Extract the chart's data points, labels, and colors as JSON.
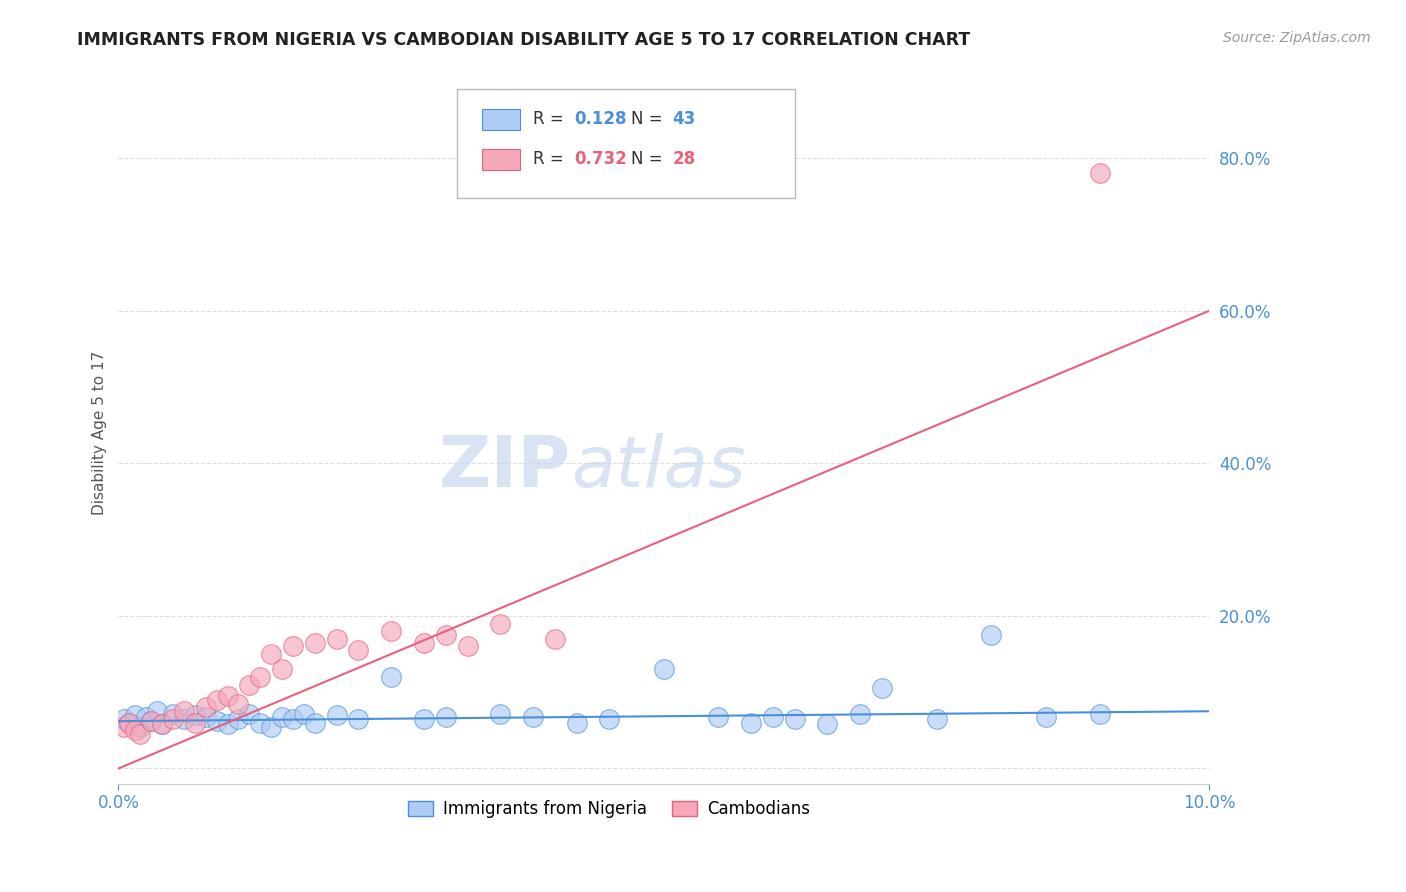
{
  "title": "IMMIGRANTS FROM NIGERIA VS CAMBODIAN DISABILITY AGE 5 TO 17 CORRELATION CHART",
  "source": "Source: ZipAtlas.com",
  "ylabel": "Disability Age 5 to 17",
  "watermark_zip": "ZIP",
  "watermark_atlas": "atlas",
  "xlim": [
    0.0,
    0.1
  ],
  "ylim": [
    -0.02,
    0.9
  ],
  "yticks": [
    0.0,
    0.2,
    0.4,
    0.6,
    0.8
  ],
  "ytick_labels": [
    "",
    "20.0%",
    "40.0%",
    "60.0%",
    "80.0%"
  ],
  "xticks": [
    0.0,
    0.1
  ],
  "xtick_labels": [
    "0.0%",
    "10.0%"
  ],
  "nigeria_color": "#aeccf5",
  "cambodian_color": "#f5a8bb",
  "nigeria_line_color": "#4a90d9",
  "cambodian_line_color": "#e8607a",
  "nigeria_R": 0.128,
  "nigeria_N": 43,
  "cambodian_R": 0.732,
  "cambodian_N": 28,
  "legend_label_nigeria": "Immigrants from Nigeria",
  "legend_label_cambodian": "Cambodians",
  "nigeria_x": [
    0.0005,
    0.001,
    0.0015,
    0.002,
    0.0025,
    0.003,
    0.0035,
    0.004,
    0.005,
    0.006,
    0.007,
    0.008,
    0.009,
    0.01,
    0.011,
    0.012,
    0.013,
    0.014,
    0.015,
    0.016,
    0.017,
    0.018,
    0.02,
    0.022,
    0.025,
    0.028,
    0.03,
    0.035,
    0.038,
    0.042,
    0.045,
    0.05,
    0.055,
    0.058,
    0.06,
    0.062,
    0.065,
    0.068,
    0.07,
    0.075,
    0.08,
    0.085,
    0.09
  ],
  "nigeria_y": [
    0.065,
    0.06,
    0.07,
    0.055,
    0.068,
    0.062,
    0.075,
    0.058,
    0.072,
    0.065,
    0.07,
    0.068,
    0.062,
    0.058,
    0.065,
    0.072,
    0.06,
    0.055,
    0.068,
    0.065,
    0.072,
    0.06,
    0.07,
    0.065,
    0.12,
    0.065,
    0.068,
    0.072,
    0.068,
    0.06,
    0.065,
    0.13,
    0.068,
    0.06,
    0.068,
    0.065,
    0.058,
    0.072,
    0.105,
    0.065,
    0.175,
    0.068,
    0.072
  ],
  "cambodian_x": [
    0.0005,
    0.001,
    0.0015,
    0.002,
    0.003,
    0.004,
    0.005,
    0.006,
    0.007,
    0.008,
    0.009,
    0.01,
    0.011,
    0.012,
    0.013,
    0.014,
    0.015,
    0.016,
    0.018,
    0.02,
    0.022,
    0.025,
    0.028,
    0.03,
    0.032,
    0.035,
    0.04,
    0.09
  ],
  "cambodian_y": [
    0.055,
    0.06,
    0.05,
    0.045,
    0.062,
    0.058,
    0.065,
    0.075,
    0.06,
    0.08,
    0.09,
    0.095,
    0.085,
    0.11,
    0.12,
    0.15,
    0.13,
    0.16,
    0.165,
    0.17,
    0.155,
    0.18,
    0.165,
    0.175,
    0.16,
    0.19,
    0.17,
    0.78
  ],
  "nigeria_trend_x": [
    0.0,
    0.1
  ],
  "nigeria_trend_y": [
    0.062,
    0.075
  ],
  "cambodian_trend_x": [
    0.0,
    0.1
  ],
  "cambodian_trend_y": [
    0.0,
    0.6
  ],
  "title_fontsize": 12.5,
  "axis_label_fontsize": 11,
  "tick_fontsize": 12,
  "legend_fontsize": 12,
  "source_fontsize": 10,
  "watermark_fontsize_zip": 52,
  "watermark_fontsize_atlas": 52,
  "background_color": "#ffffff",
  "grid_color": "#dddddd",
  "tick_color": "#4a90d9",
  "ylabel_color": "#555555"
}
